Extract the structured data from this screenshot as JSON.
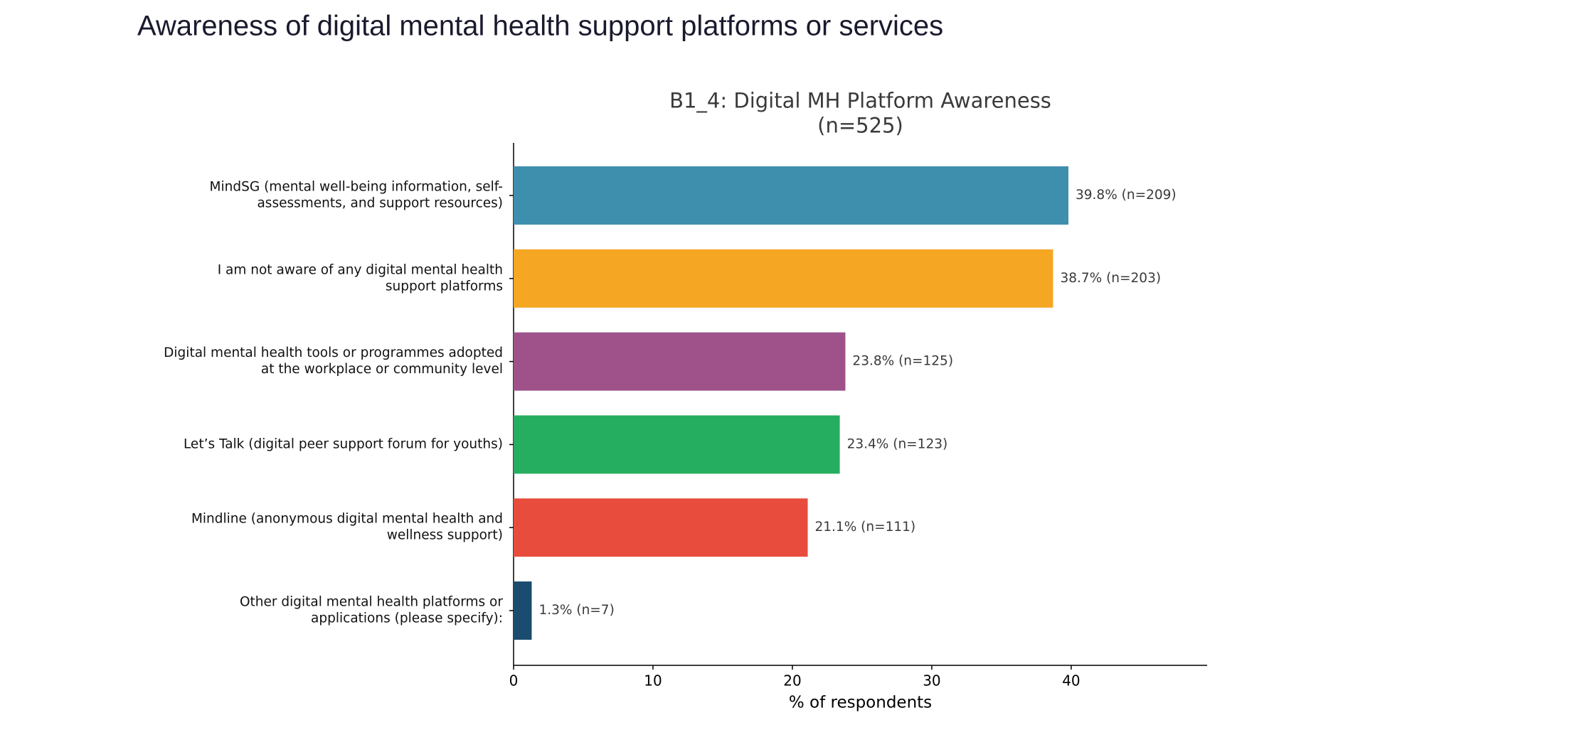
{
  "page_title": "Awareness of digital mental health support platforms or services",
  "chart_data": {
    "type": "barh",
    "title": "B1_4: Digital MH Platform Awareness\n(n=525)",
    "x_label": "% of respondents",
    "categories": [
      "MindSG (mental well-being information, self-\nassessments, and support resources)",
      "I am not aware of any digital mental health\nsupport platforms",
      "Digital mental health tools or programmes adopted\nat the workplace or community level",
      "Let’s Talk (digital peer support forum for youths)",
      "Mindline (anonymous digital mental health and\nwellness support)",
      "Other digital mental health platforms or\napplications (please specify):"
    ],
    "values": [
      39.8,
      38.7,
      23.8,
      23.4,
      21.1,
      1.3
    ],
    "value_labels": [
      "39.8% (n=209)",
      "38.7% (n=203)",
      "23.8% (n=125)",
      "23.4% (n=123)",
      "21.1% (n=111)",
      "1.3% (n=7)"
    ],
    "colors": [
      "#3e8eae",
      "#f5a623",
      "#9e5289",
      "#25ae5f",
      "#e74c3c",
      "#1b4c70"
    ],
    "xlim": [
      0,
      49.75
    ],
    "xticks": [
      0,
      10,
      20,
      30,
      40
    ]
  }
}
